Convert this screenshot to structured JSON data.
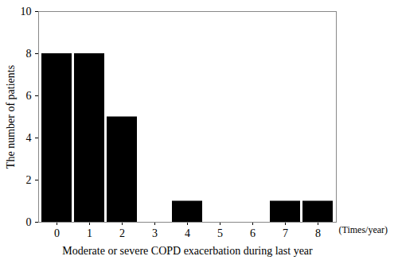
{
  "chart_data": {
    "type": "bar",
    "x_label": "Moderate or severe COPD exacerbation during last year",
    "y_label": "The number of patients",
    "annotations": [
      "(Times/year)"
    ],
    "categories": [
      "0",
      "1",
      "2",
      "3",
      "4",
      "5",
      "6",
      "7",
      "8"
    ],
    "values": [
      8,
      8,
      5,
      0,
      1,
      0,
      0,
      1,
      1
    ],
    "color": "#000000",
    "ylim": [
      0,
      10
    ],
    "yticks": [
      0,
      2,
      4,
      6,
      8,
      10
    ],
    "grid": false
  }
}
